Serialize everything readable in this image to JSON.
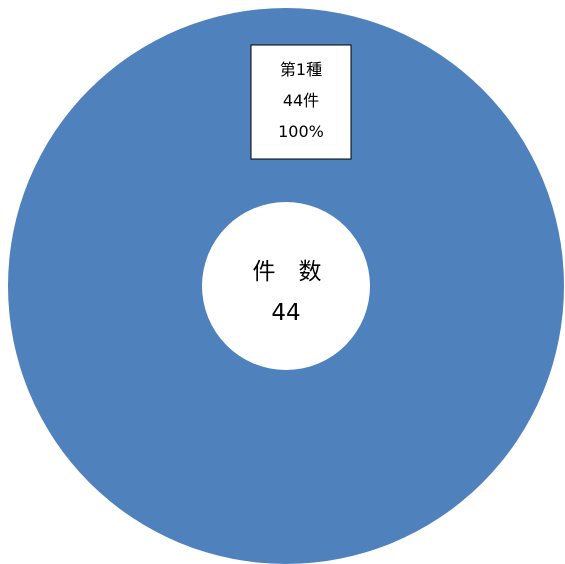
{
  "chart_data": {
    "type": "pie",
    "style": "donut",
    "slices": [
      {
        "category": "第1種",
        "value": 44,
        "value_label": "44件",
        "percent_label": "100%",
        "color": "#4F81BD"
      }
    ],
    "center": {
      "title": "件　数",
      "total": "44"
    },
    "legend": "none"
  }
}
